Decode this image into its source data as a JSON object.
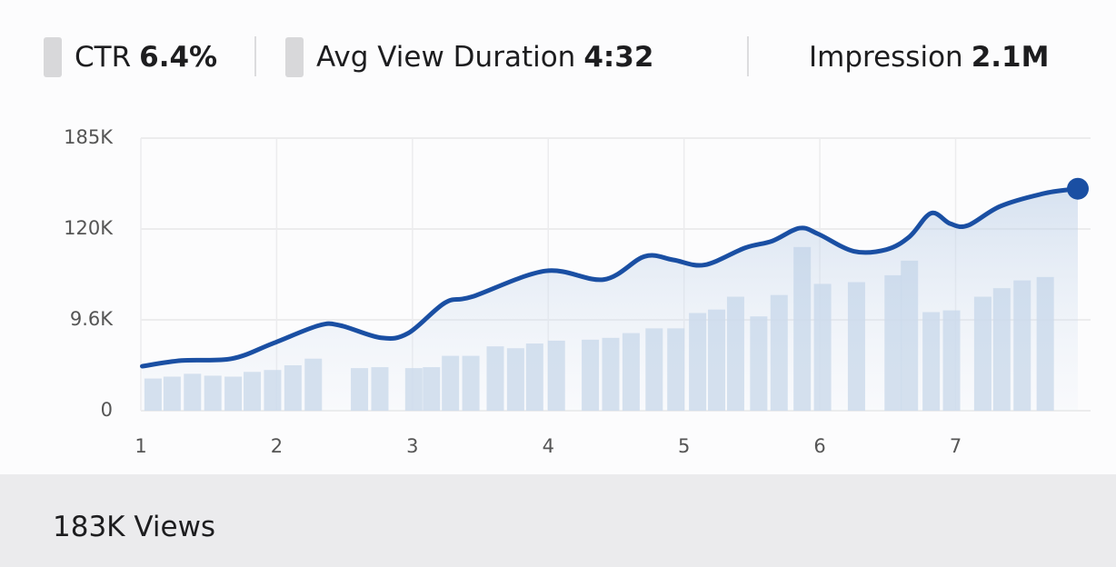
{
  "stats": [
    {
      "label": "CTR",
      "value": "6.4%"
    },
    {
      "label": "Avg View Duration",
      "value": "4:32"
    },
    {
      "label": "Impression",
      "value": "2.1M"
    }
  ],
  "chart_data": {
    "type": "line",
    "x": [
      1.01,
      1.3,
      1.67,
      1.97,
      2.31,
      2.47,
      2.77,
      2.97,
      3.24,
      3.44,
      3.98,
      4.41,
      4.71,
      4.92,
      5.15,
      5.45,
      5.65,
      5.85,
      5.99,
      6.25,
      6.49,
      6.66,
      6.82,
      6.96,
      7.09,
      7.33,
      7.66,
      7.9
    ],
    "series": [
      {
        "color": "#1a4fa3",
        "values": [
          4700,
          5300,
          5500,
          7100,
          9000,
          9000,
          7700,
          8200,
          30400,
          37700,
          69000,
          58600,
          86700,
          82500,
          76300,
          97100,
          105400,
          120600,
          113800,
          92900,
          95000,
          110600,
          131300,
          123800,
          122500,
          136300,
          145600,
          148800
        ]
      }
    ],
    "bars": {
      "color": "#c9d8ea",
      "x": [
        1.09,
        1.23,
        1.38,
        1.53,
        1.68,
        1.82,
        1.97,
        2.12,
        2.27,
        2.61,
        2.76,
        3.01,
        3.14,
        3.28,
        3.43,
        3.61,
        3.76,
        3.9,
        4.06,
        4.31,
        4.46,
        4.61,
        4.78,
        4.94,
        5.1,
        5.24,
        5.38,
        5.55,
        5.7,
        5.87,
        6.02,
        6.27,
        6.54,
        6.66,
        6.82,
        6.97,
        7.2,
        7.34,
        7.49,
        7.66
      ],
      "values": [
        3400,
        3600,
        3900,
        3700,
        3600,
        4100,
        4300,
        4800,
        5500,
        4500,
        4600,
        4500,
        4600,
        5800,
        5800,
        6800,
        6600,
        7100,
        7400,
        7500,
        7700,
        8200,
        8700,
        8700,
        17900,
        22100,
        37700,
        13800,
        39800,
        98100,
        53300,
        55400,
        63800,
        81500,
        19000,
        21100,
        37700,
        48100,
        57500,
        61700
      ]
    },
    "xlim": [
      1,
      7.9
    ],
    "xticks": [
      1,
      2,
      3,
      4,
      5,
      6,
      7
    ],
    "ylim": [
      0,
      185000
    ],
    "yticks": [
      0,
      {
        "value": 9600,
        "label": "9.6K"
      },
      {
        "value": 120000,
        "label": "120K"
      },
      {
        "value": 185000,
        "label": "185K"
      }
    ],
    "grid": true
  },
  "footer": "183K Views"
}
